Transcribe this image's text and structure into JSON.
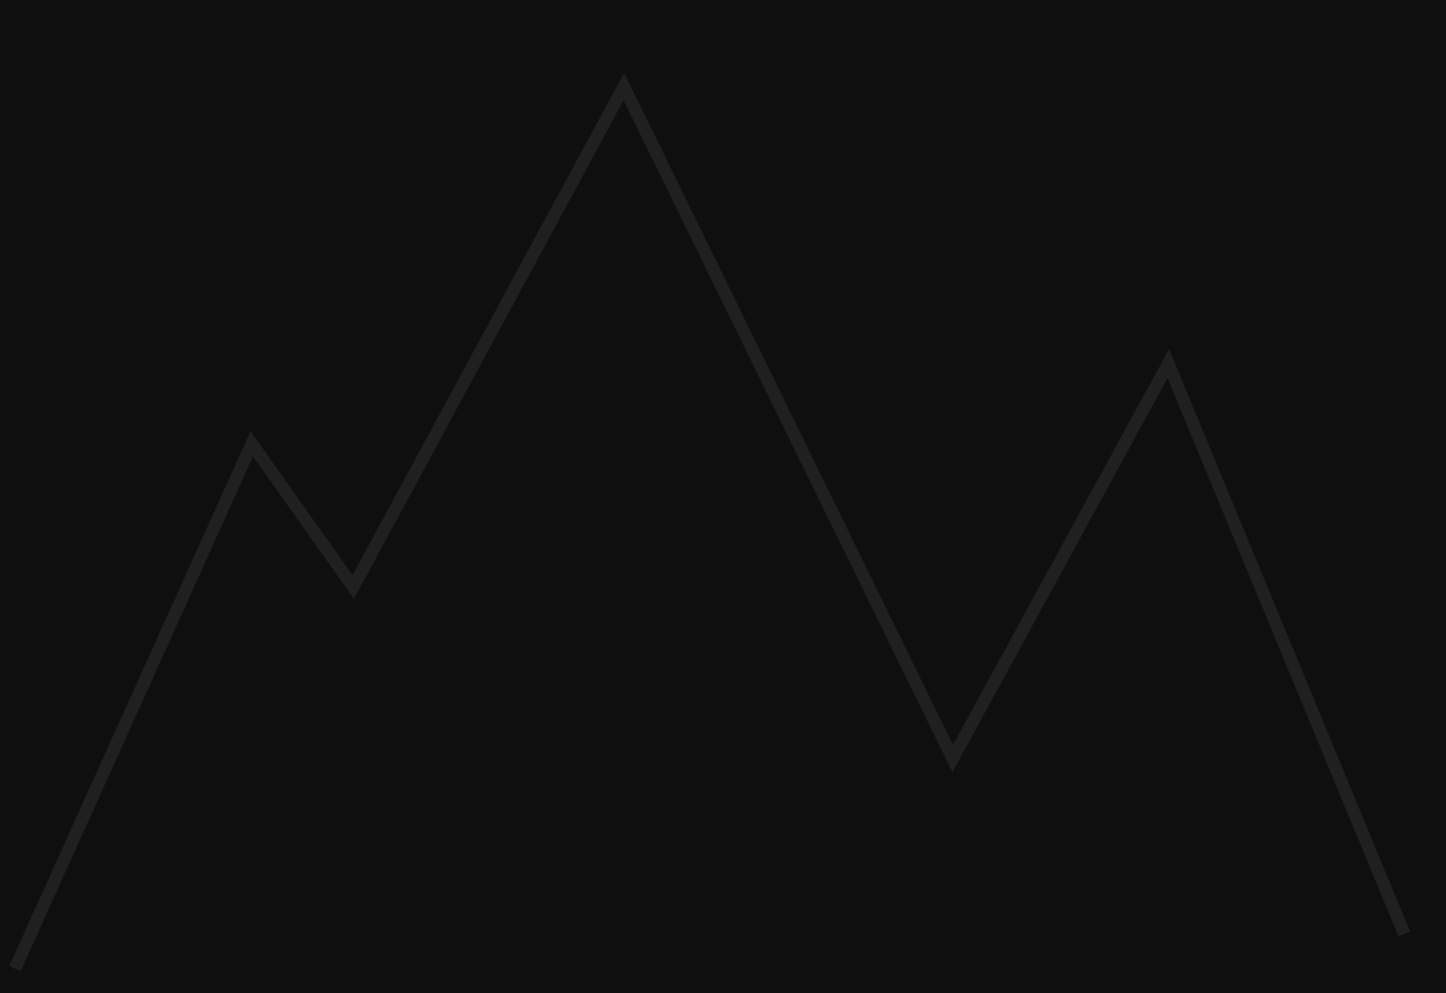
{
  "scene": {
    "icon": "mountain-peaks-icon",
    "background_color": "#0f0f0f",
    "line_color": "#202020"
  }
}
